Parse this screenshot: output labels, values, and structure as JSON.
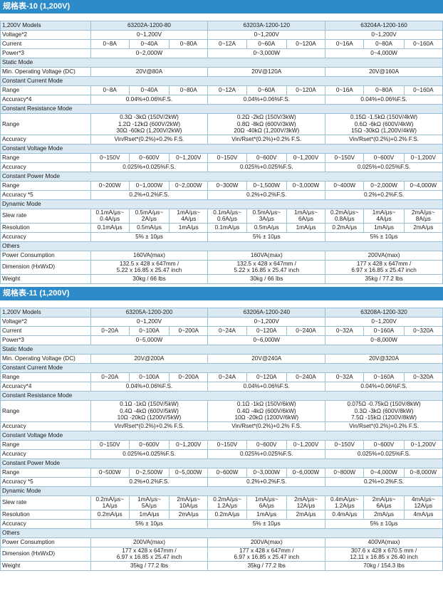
{
  "tables": [
    {
      "title": "规格表-10 (1,200V)",
      "header": {
        "label": "1,200V Models",
        "models": [
          "63202A-1200-80",
          "63203A-1200-120",
          "63204A-1200-160"
        ]
      },
      "voltage": {
        "label": "Voltage*2",
        "values": [
          "0~1,200V",
          "0~1,200V",
          "0~1,200V"
        ]
      },
      "current": {
        "label": "Current",
        "values": [
          [
            "0~8A",
            "0~40A",
            "0~80A"
          ],
          [
            "0~12A",
            "0~60A",
            "0~120A"
          ],
          [
            "0~16A",
            "0~80A",
            "0~160A"
          ]
        ]
      },
      "power": {
        "label": "Power*3",
        "values": [
          "0~2,000W",
          "0~3,000W",
          "0~4,000W"
        ]
      },
      "static_mode": {
        "title": "Static Mode",
        "label": "Min. Operating Voltage (DC)",
        "values": [
          "20V@80A",
          "20V@120A",
          "20V@160A"
        ]
      },
      "cc": {
        "title": "Constant Current Mode",
        "range_label": "Range",
        "ranges": [
          [
            "0~8A",
            "0~40A",
            "0~80A"
          ],
          [
            "0~12A",
            "0~60A",
            "0~120A"
          ],
          [
            "0~16A",
            "0~80A",
            "0~160A"
          ]
        ],
        "accuracy_label": "Accuracy*4",
        "accuracy": [
          "0.04%+0.06%F.S.",
          "0.04%+0.06%F.S.",
          "0.04%+0.06%F.S."
        ]
      },
      "cr": {
        "title": "Constant Resistance Mode",
        "range_label": "Range",
        "ranges": [
          [
            "0.3Ω -3kΩ (150V/2kW)",
            "1.2Ω -12kΩ (600V/2kW)",
            "30Ω -60kΩ (1,200V/2kW)"
          ],
          [
            "0.2Ω -2kΩ (150V/3kW)",
            "0.8Ω -8kΩ (600V/3kW)",
            "20Ω -40kΩ (1,200V/3kW)"
          ],
          [
            "0.15Ω -1.5kΩ (150V/4kW)",
            "0.6Ω -6kΩ (600V/4kW)",
            "15Ω -30kΩ (1,200V/4kW)"
          ]
        ],
        "accuracy_label": "Accuracy",
        "accuracy": [
          "Vin/Rset*(0.2%)+0.2% F.S.",
          "Vin/Rset*(0.2%)+0.2% F.S.",
          "Vin/Rset*(0.2%)+0.2% F.S."
        ]
      },
      "cv": {
        "title": "Constant Voltage Mode",
        "range_label": "Range",
        "ranges": [
          [
            "0~150V",
            "0~600V",
            "0~1,200V"
          ],
          [
            "0~150V",
            "0~600V",
            "0~1,200V"
          ],
          [
            "0~150V",
            "0~600V",
            "0~1,200V"
          ]
        ],
        "accuracy_label": "Accuracy",
        "accuracy": [
          "0.025%+0.025%F.S.",
          "0.025%+0.025%F.S.",
          "0.025%+0.025%F.S."
        ]
      },
      "cp": {
        "title": "Constant Power Mode",
        "range_label": "Range",
        "ranges": [
          [
            "0~200W",
            "0~1,000W",
            "0~2,000W"
          ],
          [
            "0~300W",
            "0~1,500W",
            "0~3,000W"
          ],
          [
            "0~400W",
            "0~2,000W",
            "0~4,000W"
          ]
        ],
        "accuracy_label": "Accuracy *5",
        "accuracy": [
          "0.2%+0.2%F.S.",
          "0.2%+0.2%F.S.",
          "0.2%+0.2%F.S."
        ]
      },
      "dynamic": {
        "title": "Dynamic Mode",
        "slew_label": "Slew rate",
        "slew": [
          [
            [
              "0.1mA/μs~",
              "0.4A/μs"
            ],
            [
              "0.5mA/μs~",
              "2A/μs"
            ],
            [
              "1mA/μs~",
              "4A/μs"
            ]
          ],
          [
            [
              "0.1mA/μs~",
              "0.6A/μs"
            ],
            [
              "0.5mA/μs~",
              "3A/μs"
            ],
            [
              "1mA/μs~",
              "6A/μs"
            ]
          ],
          [
            [
              "0.2mA/μs~",
              "0.8A/μs"
            ],
            [
              "1mA/μs~",
              "4A/μs"
            ],
            [
              "2mA/μs~",
              "8A/μs"
            ]
          ]
        ],
        "res_label": "Resolution",
        "resolution": [
          [
            "0.1mA/μs",
            "0.5mA/μs",
            "1mA/μs"
          ],
          [
            "0.1mA/μs",
            "0.5mA/μs",
            "1mA/μs"
          ],
          [
            "0.2mA/μs",
            "1mA/μs",
            "2mA/μs"
          ]
        ],
        "accuracy_label": "Accuracy",
        "accuracy": [
          "5% ± 10μs",
          "5% ± 10μs",
          "5% ± 10μs"
        ]
      },
      "others": {
        "title": "Others",
        "power_label": "Power Consumption",
        "power": [
          "160VA(max)",
          "160VA(max)",
          "200VA(max)"
        ],
        "dim_label": "Dimension (HxWxD)",
        "dimension": [
          [
            "132.5 x 428 x 647mm /",
            "5.22 x 16.85 x 25.47 inch"
          ],
          [
            "132.5 x 428 x 647mm /",
            "5.22 x 16.85 x 25.47 inch"
          ],
          [
            "177 x 428 x 647mm /",
            "6.97 x 16.85 x 25.47 inch"
          ]
        ],
        "weight_label": "Weight",
        "weight": [
          "30kg / 66 lbs",
          "30kg / 66 lbs",
          "35kg / 77.2 lbs"
        ]
      }
    },
    {
      "title": "规格表-11 (1,200V)",
      "header": {
        "label": "1,200V Models",
        "models": [
          "63205A-1200-200",
          "63206A-1200-240",
          "63208A-1200-320"
        ]
      },
      "voltage": {
        "label": "Voltage*2",
        "values": [
          "0~1,200V",
          "0~1,200V",
          "0~1,200V"
        ]
      },
      "current": {
        "label": "Current",
        "values": [
          [
            "0~20A",
            "0~100A",
            "0~200A"
          ],
          [
            "0~24A",
            "0~120A",
            "0~240A"
          ],
          [
            "0~32A",
            "0~160A",
            "0~320A"
          ]
        ]
      },
      "power": {
        "label": "Power*3",
        "values": [
          "0~5,000W",
          "0~6,000W",
          "0~8,000W"
        ]
      },
      "static_mode": {
        "title": "Static Mode",
        "label": "Min. Operating Voltage (DC)",
        "values": [
          "20V@200A",
          "20V@240A",
          "20V@320A"
        ]
      },
      "cc": {
        "title": "Constant Current Mode",
        "range_label": "Range",
        "ranges": [
          [
            "0~20A",
            "0~100A",
            "0~200A"
          ],
          [
            "0~24A",
            "0~120A",
            "0~240A"
          ],
          [
            "0~32A",
            "0~160A",
            "0~320A"
          ]
        ],
        "accuracy_label": "Accuracy*4",
        "accuracy": [
          "0.04%+0.06%F.S.",
          "0.04%+0.06%F.S.",
          "0.04%+0.06%F.S."
        ]
      },
      "cr": {
        "title": "Constant Resistance Mode",
        "range_label": "Range",
        "ranges": [
          [
            "0.1Ω -1kΩ (150V/5kW)",
            "0.4Ω -4kΩ (600V/5kW)",
            "10Ω -20kΩ (1200V/5kW)"
          ],
          [
            "0.1Ω -1kΩ (150V/6kW)",
            "0.4Ω -4kΩ (600V/6kW)",
            "10Ω -20kΩ (1200V/6kW)"
          ],
          [
            "0.075Ω -0.75kΩ (150V/8kW)",
            "0.3Ω -3kΩ (600V/8kW)",
            "7.5Ω -15kΩ (1200V/8kW)"
          ]
        ],
        "accuracy_label": "Accuracy",
        "accuracy": [
          "Vin/Rset*(0.2%)+0.2% F.S.",
          "Vin/Rset*(0.2%)+0.2% F.S.",
          "Vin/Rset*(0.2%)+0.2% F.S."
        ]
      },
      "cv": {
        "title": "Constant Voltage Mode",
        "range_label": "Range",
        "ranges": [
          [
            "0~150V",
            "0~600V",
            "0~1,200V"
          ],
          [
            "0~150V",
            "0~600V",
            "0~1,200V"
          ],
          [
            "0~150V",
            "0~600V",
            "0~1,200V"
          ]
        ],
        "accuracy_label": "Accuracy",
        "accuracy": [
          "0.025%+0.025%F.S.",
          "0.025%+0.025%F.S.",
          "0.025%+0.025%F.S."
        ]
      },
      "cp": {
        "title": "Constant Power Mode",
        "range_label": "Range",
        "ranges": [
          [
            "0~500W",
            "0~2,500W",
            "0~5,000W"
          ],
          [
            "0~600W",
            "0~3,000W",
            "0~6,000W"
          ],
          [
            "0~800W",
            "0~4,000W",
            "0~8,000W"
          ]
        ],
        "accuracy_label": "Accuracy *5",
        "accuracy": [
          "0.2%+0.2%F.S.",
          "0.2%+0.2%F.S.",
          "0.2%+0.2%F.S."
        ]
      },
      "dynamic": {
        "title": "Dynamic Mode",
        "slew_label": "Slew rate",
        "slew": [
          [
            [
              "0.2mA/μs~",
              "1A/μs"
            ],
            [
              "1mA/μs~",
              "5A/μs"
            ],
            [
              "2mA/μs~",
              "10A/μs"
            ]
          ],
          [
            [
              "0.2mA/μs~",
              "1.2A/μs"
            ],
            [
              "1mA/μs~",
              "6A/μs"
            ],
            [
              "2mA/μs~",
              "12A/μs"
            ]
          ],
          [
            [
              "0.4mA/μs~",
              "1.2A/μs"
            ],
            [
              "2mA/μs~",
              "6A/μs"
            ],
            [
              "4mA/μs~",
              "12A/μs"
            ]
          ]
        ],
        "res_label": "Resolution",
        "resolution": [
          [
            "0.2mA/μs",
            "1mA/μs",
            "2mA/μs"
          ],
          [
            "0.2mA/μs",
            "1mA/μs",
            "2mA/μs"
          ],
          [
            "0.4mA/μs",
            "2mA/μs",
            "4mA/μs"
          ]
        ],
        "accuracy_label": "Accuracy",
        "accuracy": [
          "5% ± 10μs",
          "5% ± 10μs",
          "5% ± 10μs"
        ]
      },
      "others": {
        "title": "Others",
        "power_label": "Power Consumption",
        "power": [
          "200VA(max)",
          "200VA(max)",
          "400VA(max)"
        ],
        "dim_label": "Dimension (HxWxD)",
        "dimension": [
          [
            "177 x 428 x 647mm /",
            "6.97 x 16.85 x 25.47 inch"
          ],
          [
            "177 x 428 x 647mm /",
            "6.97 x 16.85 x 25.47 inch"
          ],
          [
            "307.6 x 428 x 670.5 mm /",
            "12.11 x 16.85 x 26.40 inch"
          ]
        ],
        "weight_label": "Weight",
        "weight": [
          "35kg / 77.2 lbs",
          "35kg / 77.2 lbs",
          "70kg / 154.3 lbs"
        ]
      }
    }
  ],
  "colors": {
    "title_bar": "#2c8bc8",
    "section_bg": "#dbe9f3",
    "border": "#9bbfd6"
  }
}
